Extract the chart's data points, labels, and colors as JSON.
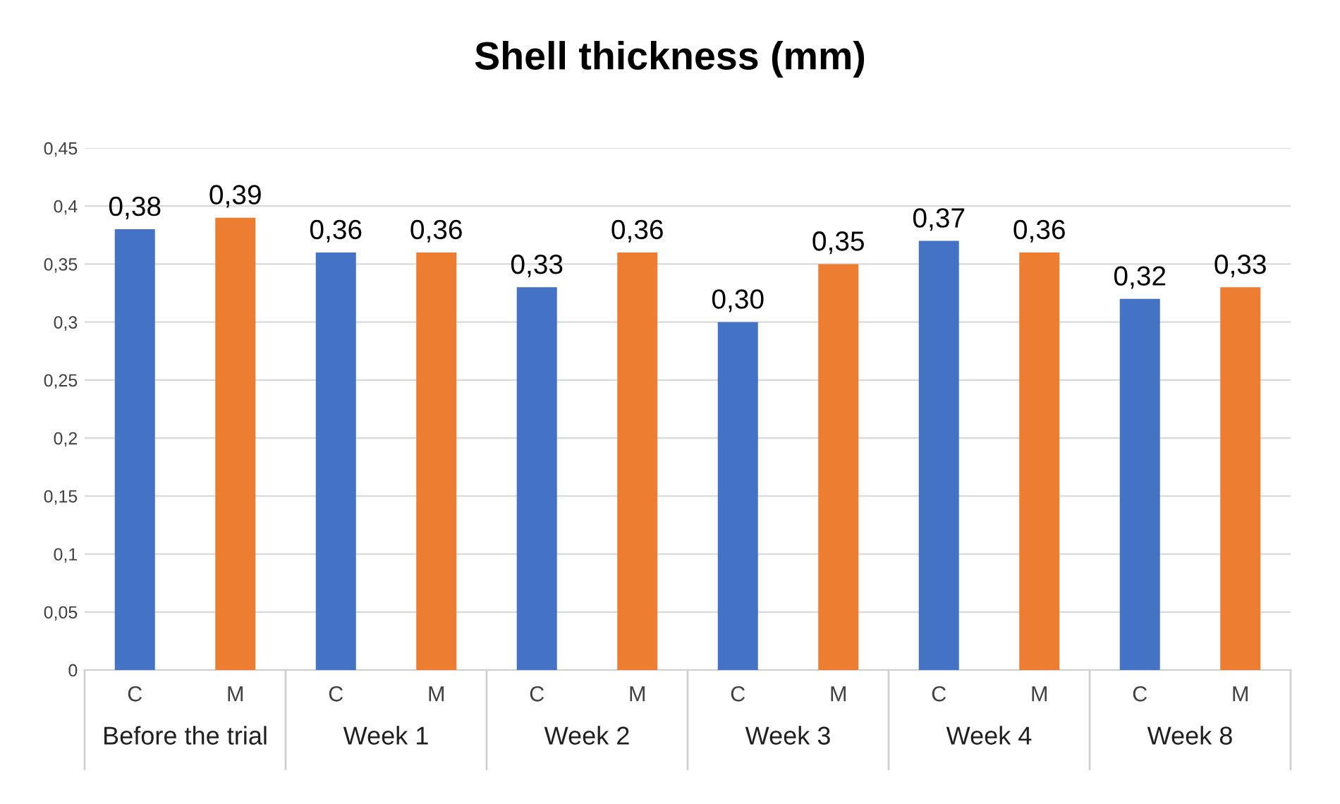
{
  "chart_data": {
    "type": "bar",
    "title": "Shell thickness (mm)",
    "categories": [
      "Before the trial",
      "Week 1",
      "Week 2",
      "Week 3",
      "Week 4",
      "Week 8"
    ],
    "series": [
      {
        "name": "C",
        "color": "#4472c4",
        "values": [
          0.38,
          0.36,
          0.33,
          0.3,
          0.37,
          0.32
        ],
        "value_labels": [
          "0,38",
          "0,36",
          "0,33",
          "0,30",
          "0,37",
          "0,32"
        ]
      },
      {
        "name": "M",
        "color": "#ed7d31",
        "values": [
          0.39,
          0.36,
          0.36,
          0.35,
          0.36,
          0.33
        ],
        "value_labels": [
          "0,39",
          "0,36",
          "0,36",
          "0,35",
          "0,36",
          "0,33"
        ]
      }
    ],
    "ylim": [
      0,
      0.45
    ],
    "yticks": [
      {
        "value": 0,
        "label": "0"
      },
      {
        "value": 0.05,
        "label": "0,05"
      },
      {
        "value": 0.1,
        "label": "0,1"
      },
      {
        "value": 0.15,
        "label": "0,15"
      },
      {
        "value": 0.2,
        "label": "0,2"
      },
      {
        "value": 0.25,
        "label": "0,25"
      },
      {
        "value": 0.3,
        "label": "0,3"
      },
      {
        "value": 0.35,
        "label": "0,35"
      },
      {
        "value": 0.4,
        "label": "0,4"
      },
      {
        "value": 0.45,
        "label": "0,45"
      }
    ],
    "grid": "y",
    "legend": false
  }
}
